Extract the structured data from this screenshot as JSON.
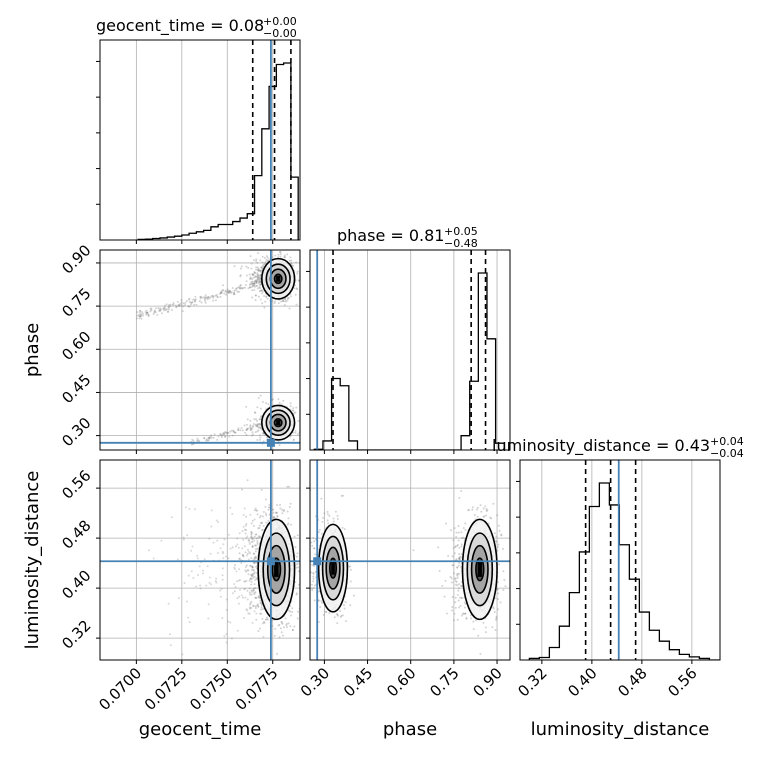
{
  "chart_data": {
    "type": "corner",
    "parameters": [
      "geocent_time",
      "phase",
      "luminosity_distance"
    ],
    "truths": {
      "geocent_time": 0.0774,
      "phase": 0.275,
      "luminosity_distance": 0.443
    },
    "titles": [
      {
        "param": "geocent_time",
        "lhs": "geocent_time = 0.08",
        "plus": "+0.00",
        "minus": "−0.00"
      },
      {
        "param": "phase",
        "lhs": "phase = 0.81",
        "plus": "+0.05",
        "minus": "−0.48"
      },
      {
        "param": "luminosity_distance",
        "lhs": "luminosity_distance = 0.43",
        "plus": "+0.04",
        "minus": "−0.04"
      }
    ],
    "axis_labels": {
      "x": [
        "geocent_time",
        "phase",
        "luminosity_distance"
      ],
      "y": [
        "phase",
        "luminosity_distance"
      ]
    },
    "ranges": {
      "geocent_time": [
        0.068,
        0.079
      ],
      "phase": [
        0.25,
        0.945
      ],
      "luminosity_distance": [
        0.285,
        0.605
      ]
    },
    "ticks": {
      "geocent_time": {
        "values": [
          0.07,
          0.0725,
          0.075,
          0.0775
        ],
        "labels": [
          "0.0700",
          "0.0725",
          "0.0750",
          "0.0775"
        ]
      },
      "phase": {
        "values": [
          0.3,
          0.45,
          0.6,
          0.75,
          0.9
        ],
        "labels": [
          "0.30",
          "0.45",
          "0.60",
          "0.75",
          "0.90"
        ]
      },
      "luminosity_distance": {
        "values": [
          0.32,
          0.4,
          0.48,
          0.56
        ],
        "labels": [
          "0.32",
          "0.40",
          "0.48",
          "0.56"
        ]
      }
    },
    "quantiles": {
      "geocent_time": [
        0.0764,
        0.0776,
        0.0785
      ],
      "phase": [
        0.33,
        0.81,
        0.86
      ],
      "luminosity_distance": [
        0.39,
        0.43,
        0.47
      ]
    },
    "histograms": {
      "geocent_time": {
        "edges": [
          0.0701,
          0.0705,
          0.0709,
          0.0713,
          0.0717,
          0.0721,
          0.0725,
          0.0729,
          0.0733,
          0.0737,
          0.0741,
          0.0745,
          0.0749,
          0.0753,
          0.0757,
          0.0761,
          0.0765,
          0.0769,
          0.0773,
          0.0777,
          0.0781,
          0.0785,
          0.0789
        ],
        "counts": [
          0.2,
          0.3,
          0.5,
          0.7,
          1.0,
          1.3,
          1.7,
          2.3,
          2.8,
          3.3,
          4.5,
          5.3,
          5.3,
          6.3,
          7.5,
          9.0,
          22.0,
          38.0,
          52.5,
          60.0,
          60.5,
          21.5
        ]
      },
      "phase": {
        "edges": [
          0.265,
          0.295,
          0.325,
          0.355,
          0.385,
          0.415,
          0.445,
          0.475,
          0.505,
          0.535,
          0.565,
          0.595,
          0.625,
          0.655,
          0.685,
          0.715,
          0.745,
          0.775,
          0.805,
          0.835,
          0.865,
          0.895,
          0.925
        ],
        "counts": [
          0.3,
          4.0,
          31.5,
          28.3,
          4.0,
          0.0,
          0.0,
          0.0,
          0.0,
          0.0,
          0.0,
          0.0,
          0.0,
          0.0,
          0.0,
          0.0,
          0.0,
          6.3,
          30.3,
          78.0,
          49.0,
          3.0
        ]
      },
      "luminosity_distance": {
        "edges": [
          0.3,
          0.316,
          0.332,
          0.348,
          0.364,
          0.38,
          0.396,
          0.412,
          0.428,
          0.444,
          0.46,
          0.476,
          0.492,
          0.508,
          0.524,
          0.54,
          0.556,
          0.572,
          0.588,
          0.604
        ],
        "counts": [
          0.5,
          0.8,
          4.0,
          10.8,
          21.5,
          34.5,
          49.0,
          56.5,
          49.5,
          36.8,
          25.8,
          15.3,
          9.5,
          6.0,
          3.3,
          1.8,
          1.0,
          0.5,
          0.0
        ]
      }
    },
    "density_modes": [
      {
        "x": "geocent_time",
        "y": "phase",
        "modes": [
          {
            "x": 0.0778,
            "y": 0.845,
            "sx": 0.00045,
            "sy": 0.035,
            "weight": 0.62
          },
          {
            "x": 0.0778,
            "y": 0.345,
            "sx": 0.00045,
            "sy": 0.03,
            "weight": 0.38
          }
        ]
      },
      {
        "x": "geocent_time",
        "y": "luminosity_distance",
        "modes": [
          {
            "x": 0.0777,
            "y": 0.43,
            "sx": 0.0005,
            "sy": 0.04,
            "weight": 1.0
          }
        ]
      },
      {
        "x": "phase",
        "y": "luminosity_distance",
        "modes": [
          {
            "x": 0.84,
            "y": 0.43,
            "sx": 0.03,
            "sy": 0.04,
            "weight": 0.62
          },
          {
            "x": 0.33,
            "y": 0.432,
            "sx": 0.025,
            "sy": 0.035,
            "weight": 0.38
          }
        ]
      }
    ],
    "colors": {
      "truth": "#4682b4",
      "hist": "#000000",
      "scatter": "#808080",
      "grid": "#b0b0b0"
    },
    "grid": true
  }
}
